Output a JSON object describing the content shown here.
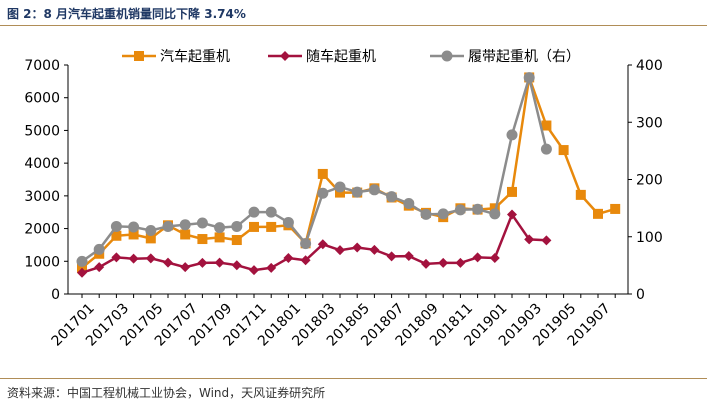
{
  "header": {
    "title": "图 2：8 月汽车起重机销量同比下降 3.74%"
  },
  "footer": {
    "source": "资料来源：中国工程机械工业协会，Wind，天风证券研究所"
  },
  "chart_data": {
    "type": "line",
    "x": [
      "201701",
      "201702",
      "201703",
      "201704",
      "201705",
      "201706",
      "201707",
      "201708",
      "201709",
      "201710",
      "201711",
      "201712",
      "201801",
      "201802",
      "201803",
      "201804",
      "201805",
      "201806",
      "201807",
      "201808",
      "201809",
      "201810",
      "201811",
      "201812",
      "201901",
      "201902",
      "201903",
      "201904",
      "201905",
      "201906",
      "201907",
      "201908"
    ],
    "x_tick_labels": [
      "201701",
      "201703",
      "201705",
      "201707",
      "201709",
      "201711",
      "201801",
      "201803",
      "201805",
      "201807",
      "201809",
      "201811",
      "201901",
      "201903",
      "201905",
      "201907"
    ],
    "y_left": {
      "lim": [
        0,
        7000
      ],
      "ticks": [
        0,
        1000,
        2000,
        3000,
        4000,
        5000,
        6000,
        7000
      ]
    },
    "y_right": {
      "lim": [
        0,
        400
      ],
      "ticks": [
        0,
        100,
        200,
        300,
        400
      ]
    },
    "grid": false,
    "legend_position": "top",
    "series": [
      {
        "name": "汽车起重机",
        "axis": "left",
        "color": "#e8890c",
        "marker": "square",
        "values": [
          800,
          1230,
          1780,
          1820,
          1700,
          2100,
          1820,
          1680,
          1730,
          1650,
          2050,
          2050,
          2100,
          1550,
          3670,
          3100,
          3100,
          3230,
          2950,
          2700,
          2480,
          2350,
          2620,
          2580,
          2620,
          3120,
          6620,
          5150,
          4400,
          3030,
          2450,
          2600
        ]
      },
      {
        "name": "随车起重机",
        "axis": "left",
        "color": "#a3123e",
        "marker": "diamond",
        "values": [
          650,
          820,
          1120,
          1080,
          1090,
          960,
          820,
          950,
          960,
          880,
          730,
          800,
          1100,
          1030,
          1520,
          1340,
          1420,
          1350,
          1150,
          1160,
          920,
          950,
          950,
          1120,
          1100,
          2430,
          1670,
          1640,
          null,
          null,
          null,
          null
        ]
      },
      {
        "name": "履带起重机（右）",
        "axis": "right",
        "color": "#8c8c8c",
        "marker": "circle",
        "values": [
          57,
          78,
          118,
          117,
          111,
          118,
          121,
          124,
          116,
          118,
          143,
          143,
          125,
          88,
          176,
          187,
          178,
          182,
          170,
          158,
          139,
          140,
          147,
          148,
          140,
          278,
          378,
          253,
          null,
          null,
          null,
          null
        ]
      }
    ]
  }
}
